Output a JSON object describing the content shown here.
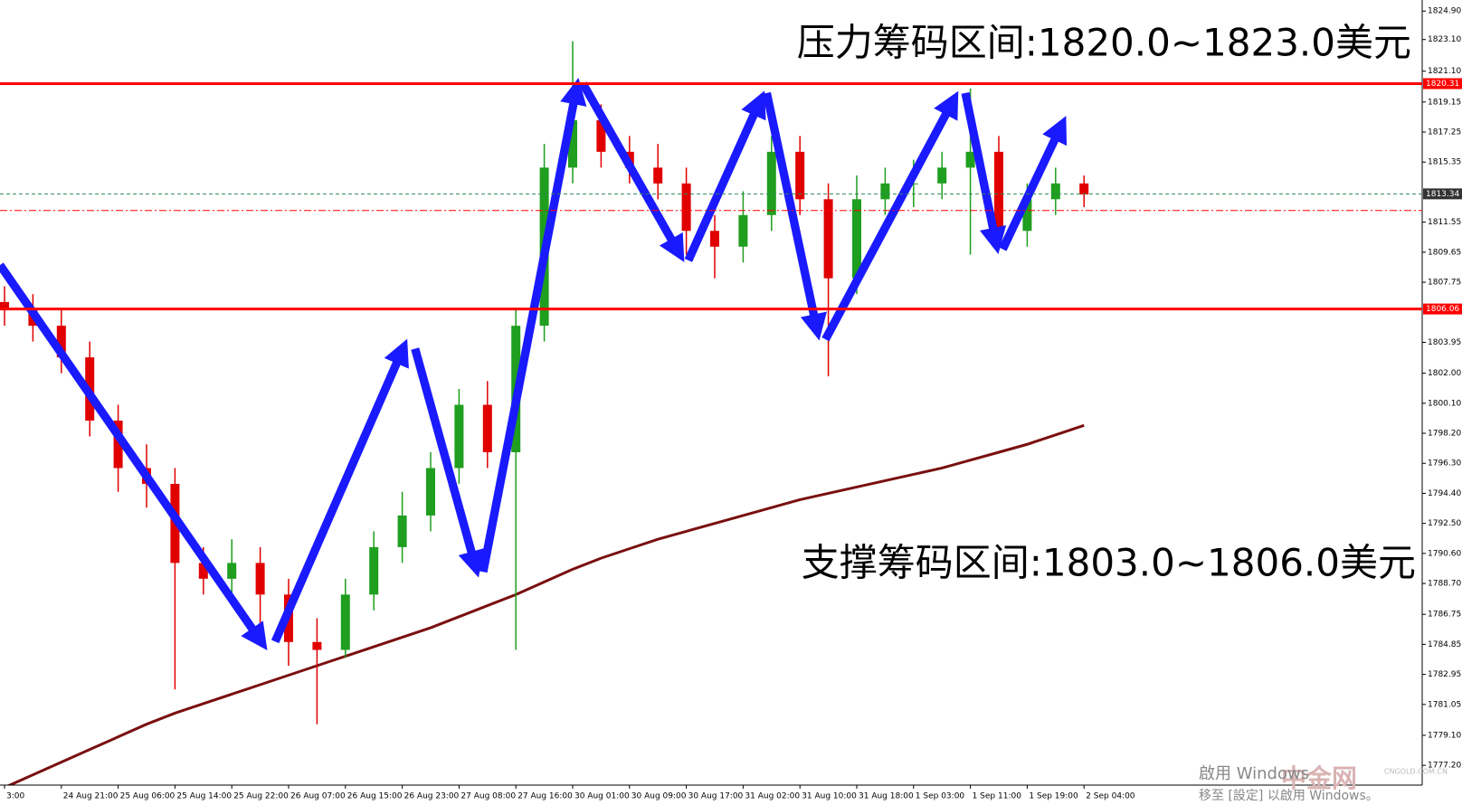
{
  "chart_data": {
    "type": "candlestick",
    "annotations": [
      "压力筹码区间:1820.0~1823.0美元",
      "支撑筹码区间:1803.0~1806.0美元"
    ],
    "watermarks": [
      "中金网",
      "CNGOLD.COM.CN",
      "啟用 Windows",
      "移至 [設定] 以啟用 Windows。"
    ],
    "categories": [
      "3:00",
      null,
      "24 Aug 21:00",
      null,
      "25 Aug 06:00",
      null,
      "25 Aug 14:00",
      null,
      "25 Aug 22:00",
      null,
      "26 Aug 07:00",
      null,
      "26 Aug 15:00",
      null,
      "26 Aug 23:00",
      null,
      "27 Aug 08:00",
      null,
      "27 Aug 16:00",
      null,
      "30 Aug 01:00",
      null,
      "30 Aug 09:00",
      null,
      "30 Aug 17:00",
      null,
      "31 Aug 02:00",
      null,
      "31 Aug 10:00",
      null,
      "31 Aug 18:00",
      null,
      "1 Sep 03:00",
      null,
      "1 Sep 11:00",
      null,
      "1 Sep 19:00",
      null,
      "2 Sep 04:00"
    ],
    "open": [
      1806.5,
      1806,
      1805,
      1803,
      1799,
      1796,
      1795,
      1790,
      1789,
      1790,
      1788,
      1785,
      1784.5,
      1788,
      1791,
      1793,
      1796,
      1800,
      1797,
      1805,
      1815,
      1818,
      1816,
      1815,
      1814,
      1811,
      1810,
      1812,
      1816,
      1813,
      1808,
      1813,
      1814,
      1814,
      1815,
      1816,
      1811,
      1813,
      1814
    ],
    "high": [
      1807.5,
      1807,
      1806,
      1804,
      1800,
      1797.5,
      1796,
      1791,
      1791.5,
      1791,
      1789,
      1786.5,
      1789,
      1792,
      1794.5,
      1797,
      1801,
      1801.5,
      1806,
      1816.5,
      1823,
      1819,
      1817,
      1816.5,
      1815,
      1812,
      1813.5,
      1817,
      1817,
      1814,
      1814.5,
      1815,
      1815.5,
      1816,
      1820,
      1817,
      1814,
      1815,
      1814.5
    ],
    "low": [
      1805,
      1804,
      1802,
      1798,
      1794.5,
      1793.5,
      1782,
      1788,
      1787.5,
      1786,
      1783.5,
      1779.8,
      1784,
      1787,
      1790,
      1792,
      1795,
      1796,
      1784.5,
      1804,
      1814,
      1815,
      1814,
      1813,
      1809.5,
      1808,
      1809,
      1811,
      1812,
      1801.8,
      1807,
      1812,
      1812.5,
      1813,
      1809.5,
      1810,
      1810,
      1812,
      1812.5
    ],
    "close": [
      1806,
      1805,
      1803,
      1799,
      1796,
      1795,
      1790,
      1789,
      1790,
      1788,
      1785,
      1784.5,
      1788,
      1791,
      1793,
      1796,
      1800,
      1797,
      1805,
      1815,
      1818,
      1816,
      1815,
      1814,
      1811,
      1810,
      1812,
      1816,
      1813,
      1808,
      1813,
      1814,
      1814,
      1815,
      1816,
      1811,
      1813,
      1814,
      1813.3
    ],
    "up_color": "#1f9e1f",
    "down_color": "#e00000",
    "series": [
      {
        "color": "#7a0f0f",
        "values": [
          1775.8,
          1776.6,
          1777.4,
          1778.2,
          1779.0,
          1779.8,
          1780.5,
          1781.1,
          1781.7,
          1782.3,
          1782.9,
          1783.5,
          1784.1,
          1784.7,
          1785.3,
          1785.9,
          1786.6,
          1787.3,
          1788.0,
          1788.8,
          1789.6,
          1790.3,
          1790.9,
          1791.5,
          1792.0,
          1792.5,
          1793.0,
          1793.5,
          1794.0,
          1794.4,
          1794.8,
          1795.2,
          1795.6,
          1796.0,
          1796.5,
          1797.0,
          1797.5,
          1798.1,
          1798.7
        ]
      }
    ],
    "hlines": [
      {
        "value": 1820.31,
        "label": "1820.31",
        "color": "#ff0000",
        "style": "solid"
      },
      {
        "value": 1806.06,
        "label": "1806.06",
        "color": "#ff0000",
        "style": "solid"
      },
      {
        "value": 1813.34,
        "label": "1813.34",
        "color": "#2e8b57",
        "style": "dashed"
      },
      {
        "value": 1812.29,
        "color": "#ff0000",
        "style": "dashdot"
      }
    ],
    "ylim": [
      1775.95,
      1825.6
    ],
    "yticks": [
      {
        "value": 1824.9,
        "label": "1824.90"
      },
      {
        "value": 1823.1,
        "label": "1823.10"
      },
      {
        "value": 1821.1,
        "label": "1821.10"
      },
      1819.15,
      1817.25,
      1815.35,
      1811.55,
      1809.65,
      1807.75,
      1803.95,
      {
        "value": 1802.0,
        "label": "1802.00"
      },
      {
        "value": 1800.1,
        "label": "1800.10"
      },
      {
        "value": 1798.2,
        "label": "1798.20"
      },
      {
        "value": 1796.3,
        "label": "1796.30"
      },
      {
        "value": 1794.4,
        "label": "1794.40"
      },
      {
        "value": 1792.5,
        "label": "1792.50"
      },
      {
        "value": 1790.6,
        "label": "1790.60"
      },
      {
        "value": 1788.7,
        "label": "1788.70"
      },
      1786.75,
      1784.85,
      1782.95,
      1781.05,
      {
        "value": 1779.1,
        "label": "1779.10"
      },
      {
        "value": 1777.2,
        "label": "1777.20"
      }
    ]
  }
}
